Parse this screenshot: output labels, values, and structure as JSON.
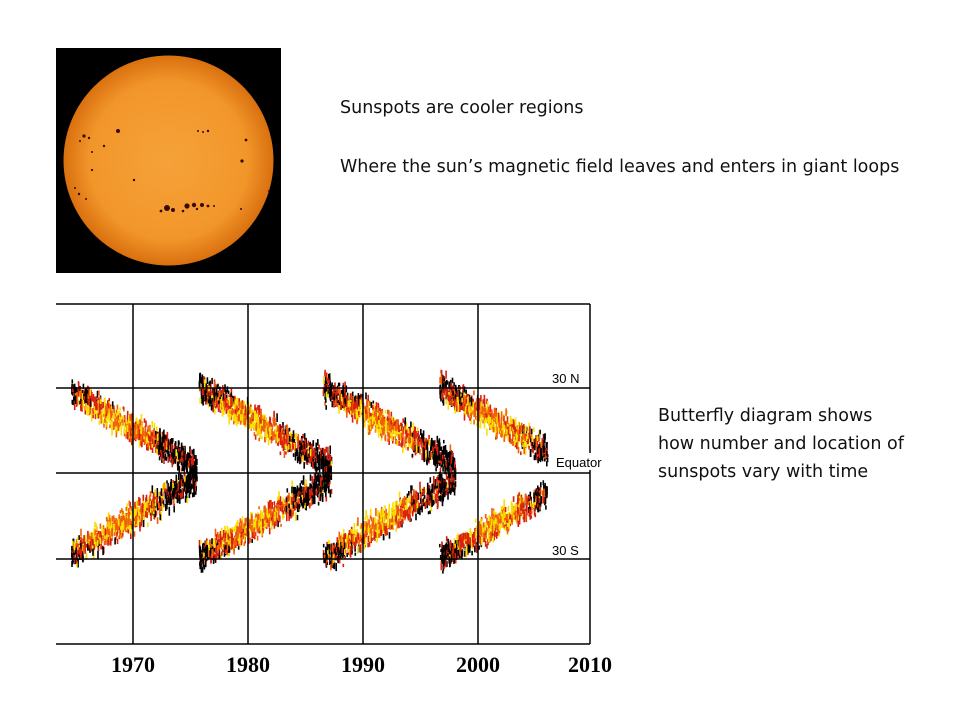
{
  "text": {
    "line1": "Sunspots are cooler regions",
    "line2": "Where the sun’s magnetic field leaves and enters in giant loops",
    "line3": "Butterfly diagram shows how number and location of sunspots vary with time"
  },
  "sun_image": {
    "icon": "sun-photo-with-sunspots",
    "colors": {
      "disk": "#f29a2e",
      "limb": "#d96f10",
      "spot": "#3a0a05",
      "background": "#000000"
    }
  },
  "butterfly_diagram": {
    "latitude_labels": [
      "30 N",
      "Equator",
      "30 S"
    ],
    "year_labels": [
      "1970",
      "1980",
      "1990",
      "2000",
      "2010"
    ],
    "colors": {
      "black": "#000000",
      "red": "#d8200c",
      "orange": "#f0600c",
      "yellow": "#f8e000",
      "grid": "#000000"
    }
  }
}
